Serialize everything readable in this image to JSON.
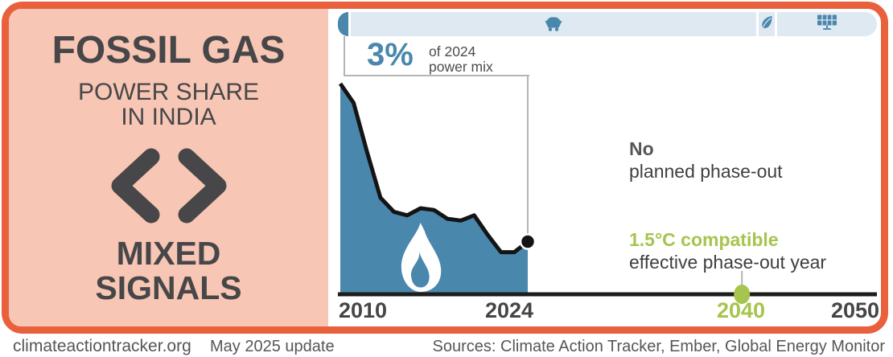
{
  "colors": {
    "accent_orange": "#e8613c",
    "panel_salmon": "#f8c6b4",
    "gas_blue": "#4a87ad",
    "bar_light_blue": "#dfe9f1",
    "compatible_green": "#a6c44e",
    "text_dark": "#474749",
    "axis_black": "#1d1d1b",
    "bracket_gray": "#b4b4b4"
  },
  "left_panel": {
    "title": "FOSSIL GAS",
    "subtitle_line1": "POWER SHARE",
    "subtitle_line2": "IN INDIA",
    "rating_icon": "mixed-signals-icon",
    "rating_line1": "MIXED",
    "rating_line2": "SIGNALS"
  },
  "power_mix_bar": {
    "segments": [
      {
        "name": "fossil-gas",
        "color": "#4a87ad"
      },
      {
        "name": "coal",
        "icon": "coal-cart-icon"
      },
      {
        "name": "bioenergy",
        "icon": "leaf-icon"
      },
      {
        "name": "solar",
        "icon": "solar-panel-icon"
      }
    ]
  },
  "callout": {
    "value": "3%",
    "label_line1": "of 2024",
    "label_line2": "power mix"
  },
  "chart_data": {
    "type": "area",
    "title": "Fossil gas power share in India",
    "unit": "% of power mix",
    "x": [
      2010,
      2011,
      2012,
      2013,
      2014,
      2015,
      2016,
      2017,
      2018,
      2019,
      2020,
      2021,
      2022,
      2023,
      2024
    ],
    "values": [
      12,
      10.9,
      8.1,
      5.5,
      4.7,
      4.5,
      4.9,
      4.8,
      4.3,
      4.2,
      4.5,
      3.4,
      2.4,
      2.4,
      3
    ],
    "end_point": {
      "year": 2024,
      "value": 3,
      "label": "3% of 2024 power mix"
    },
    "x_range": [
      2010,
      2050
    ],
    "x_axis_ticks": [
      "2010",
      "2024",
      "2040",
      "2050"
    ],
    "grid": false,
    "area_color": "#4a87ad",
    "line_color": "#141414",
    "phase_out_marker": {
      "year": 2040,
      "label": "2040",
      "color": "#a6c44e"
    }
  },
  "annotations": {
    "no_phaseout": {
      "emphasis": "No",
      "text": "planned phase-out"
    },
    "compatible": {
      "emphasis": "1.5°C compatible",
      "text": "effective phase-out year"
    }
  },
  "footer": {
    "site": "climateactiontracker.org",
    "update": "May 2025 update",
    "sources": "Sources: Climate Action Tracker, Ember, Global Energy Monitor"
  }
}
